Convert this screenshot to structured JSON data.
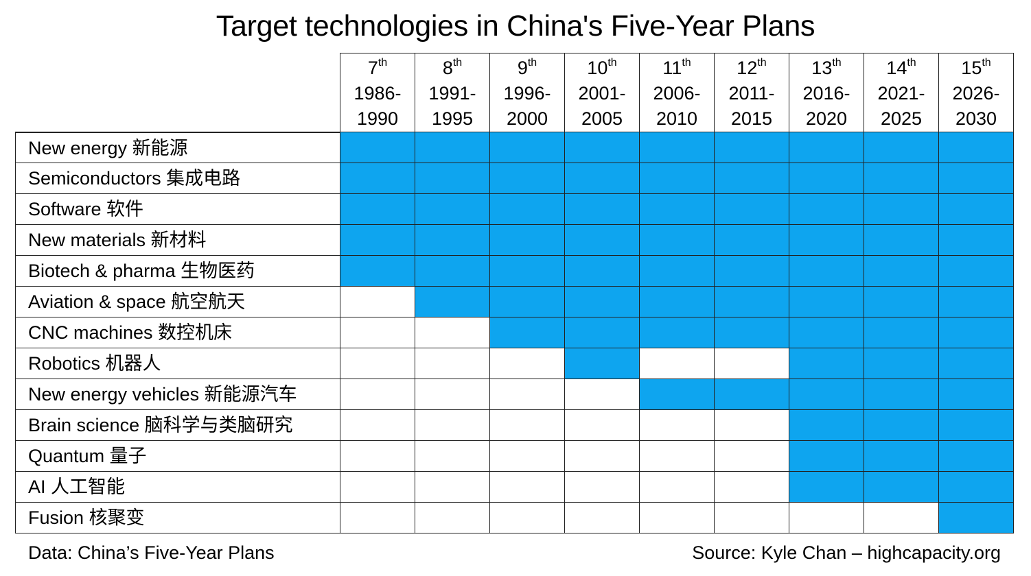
{
  "chart_data": {
    "type": "table",
    "title": "Target technologies in China's Five-Year Plans",
    "plans": [
      {
        "ordinal": "7",
        "suffix": "th",
        "years": "1986-",
        "years_end": "1990"
      },
      {
        "ordinal": "8",
        "suffix": "th",
        "years": "1991-",
        "years_end": "1995"
      },
      {
        "ordinal": "9",
        "suffix": "th",
        "years": "1996-",
        "years_end": "2000"
      },
      {
        "ordinal": "10",
        "suffix": "th",
        "years": "2001-",
        "years_end": "2005"
      },
      {
        "ordinal": "11",
        "suffix": "th",
        "years": "2006-",
        "years_end": "2010"
      },
      {
        "ordinal": "12",
        "suffix": "th",
        "years": "2011-",
        "years_end": "2015"
      },
      {
        "ordinal": "13",
        "suffix": "th",
        "years": "2016-",
        "years_end": "2020"
      },
      {
        "ordinal": "14",
        "suffix": "th",
        "years": "2021-",
        "years_end": "2025"
      },
      {
        "ordinal": "15",
        "suffix": "th",
        "years": "2026-",
        "years_end": "2030"
      }
    ],
    "technologies": [
      {
        "label": "New energy 新能源",
        "targeted": [
          1,
          1,
          1,
          1,
          1,
          1,
          1,
          1,
          1
        ]
      },
      {
        "label": "Semiconductors 集成电路",
        "targeted": [
          1,
          1,
          1,
          1,
          1,
          1,
          1,
          1,
          1
        ]
      },
      {
        "label": "Software 软件",
        "targeted": [
          1,
          1,
          1,
          1,
          1,
          1,
          1,
          1,
          1
        ]
      },
      {
        "label": "New materials 新材料",
        "targeted": [
          1,
          1,
          1,
          1,
          1,
          1,
          1,
          1,
          1
        ]
      },
      {
        "label": "Biotech & pharma 生物医药",
        "targeted": [
          1,
          1,
          1,
          1,
          1,
          1,
          1,
          1,
          1
        ]
      },
      {
        "label": "Aviation & space 航空航天",
        "targeted": [
          0,
          1,
          1,
          1,
          1,
          1,
          1,
          1,
          1
        ]
      },
      {
        "label": "CNC machines 数控机床",
        "targeted": [
          0,
          0,
          1,
          1,
          1,
          1,
          1,
          1,
          1
        ]
      },
      {
        "label": "Robotics 机器人",
        "targeted": [
          0,
          0,
          0,
          1,
          0,
          0,
          1,
          1,
          1
        ]
      },
      {
        "label": "New energy vehicles 新能源汽车",
        "targeted": [
          0,
          0,
          0,
          0,
          1,
          1,
          1,
          1,
          1
        ]
      },
      {
        "label": "Brain science 脑科学与类脑研究",
        "targeted": [
          0,
          0,
          0,
          0,
          0,
          0,
          1,
          1,
          1
        ]
      },
      {
        "label": "Quantum 量子",
        "targeted": [
          0,
          0,
          0,
          0,
          0,
          0,
          1,
          1,
          1
        ]
      },
      {
        "label": "AI 人工智能",
        "targeted": [
          0,
          0,
          0,
          0,
          0,
          0,
          1,
          1,
          1
        ]
      },
      {
        "label": "Fusion 核聚变",
        "targeted": [
          0,
          0,
          0,
          0,
          0,
          0,
          0,
          0,
          1
        ]
      }
    ],
    "highlight_color": "#0ea5ef"
  },
  "footer": {
    "data_note": "Data: China’s Five-Year Plans",
    "source": "Source: Kyle Chan – highcapacity.org"
  }
}
